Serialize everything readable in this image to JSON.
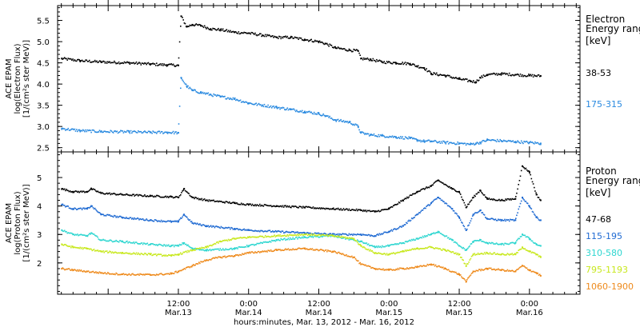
{
  "chart_data": [
    {
      "type": "scatter",
      "panel": "electron",
      "title": "",
      "ylabel_lines": [
        "ACE EPAM",
        "log(Electron Flux)",
        "[1/(cm²s ster MeV)]"
      ],
      "legend_title_lines": [
        "Electron",
        "Energy ranges",
        "[keV]"
      ],
      "ylim": [
        2.4,
        5.85
      ],
      "yticks": [
        2.5,
        3.0,
        3.5,
        4.0,
        4.5,
        5.0,
        5.5
      ],
      "ytick_labels": [
        "2.5",
        "3.0",
        "3.5",
        "4.0",
        "4.5",
        "5.0",
        "5.5"
      ],
      "series": [
        {
          "name": "38-53",
          "color": "#000000",
          "points": [
            [
              -0.33,
              4.6
            ],
            [
              -0.2,
              4.55
            ],
            [
              -0.05,
              4.52
            ],
            [
              0.15,
              4.5
            ],
            [
              0.3,
              4.47
            ],
            [
              0.42,
              4.45
            ],
            [
              0.5,
              4.44
            ],
            [
              0.52,
              5.6
            ],
            [
              0.56,
              5.35
            ],
            [
              0.6,
              5.4
            ],
            [
              0.66,
              5.38
            ],
            [
              0.73,
              5.3
            ],
            [
              0.8,
              5.28
            ],
            [
              0.9,
              5.22
            ],
            [
              1.0,
              5.2
            ],
            [
              1.1,
              5.15
            ],
            [
              1.2,
              5.1
            ],
            [
              1.3,
              5.1
            ],
            [
              1.4,
              5.05
            ],
            [
              1.5,
              5.0
            ],
            [
              1.55,
              4.95
            ],
            [
              1.62,
              4.85
            ],
            [
              1.72,
              4.8
            ],
            [
              1.78,
              4.78
            ],
            [
              1.8,
              4.6
            ],
            [
              1.87,
              4.58
            ],
            [
              1.95,
              4.52
            ],
            [
              2.05,
              4.5
            ],
            [
              2.15,
              4.48
            ],
            [
              2.2,
              4.42
            ],
            [
              2.25,
              4.38
            ],
            [
              2.3,
              4.25
            ],
            [
              2.4,
              4.2
            ],
            [
              2.5,
              4.12
            ],
            [
              2.58,
              4.07
            ],
            [
              2.62,
              4.05
            ],
            [
              2.65,
              4.15
            ],
            [
              2.7,
              4.22
            ],
            [
              2.8,
              4.24
            ],
            [
              2.9,
              4.22
            ],
            [
              3.0,
              4.2
            ],
            [
              3.08,
              4.19
            ]
          ]
        },
        {
          "name": "175-315",
          "color": "#2a8ae0",
          "points": [
            [
              -0.33,
              2.95
            ],
            [
              -0.2,
              2.9
            ],
            [
              -0.05,
              2.88
            ],
            [
              0.15,
              2.87
            ],
            [
              0.3,
              2.86
            ],
            [
              0.42,
              2.86
            ],
            [
              0.5,
              2.85
            ],
            [
              0.52,
              4.15
            ],
            [
              0.56,
              3.95
            ],
            [
              0.6,
              3.85
            ],
            [
              0.66,
              3.8
            ],
            [
              0.73,
              3.75
            ],
            [
              0.8,
              3.7
            ],
            [
              0.9,
              3.65
            ],
            [
              1.0,
              3.55
            ],
            [
              1.1,
              3.5
            ],
            [
              1.2,
              3.45
            ],
            [
              1.3,
              3.4
            ],
            [
              1.4,
              3.35
            ],
            [
              1.5,
              3.3
            ],
            [
              1.55,
              3.25
            ],
            [
              1.62,
              3.15
            ],
            [
              1.72,
              3.1
            ],
            [
              1.78,
              3.0
            ],
            [
              1.8,
              2.85
            ],
            [
              1.87,
              2.8
            ],
            [
              1.95,
              2.78
            ],
            [
              2.05,
              2.75
            ],
            [
              2.15,
              2.72
            ],
            [
              2.2,
              2.68
            ],
            [
              2.25,
              2.65
            ],
            [
              2.3,
              2.65
            ],
            [
              2.4,
              2.62
            ],
            [
              2.5,
              2.6
            ],
            [
              2.58,
              2.58
            ],
            [
              2.62,
              2.6
            ],
            [
              2.65,
              2.62
            ],
            [
              2.7,
              2.68
            ],
            [
              2.8,
              2.66
            ],
            [
              2.9,
              2.64
            ],
            [
              3.0,
              2.62
            ],
            [
              3.08,
              2.6
            ]
          ]
        }
      ]
    },
    {
      "type": "scatter",
      "panel": "proton",
      "title": "",
      "ylabel_lines": [
        "ACE EPAM",
        "log(Proton Flux)",
        "[1/(cm²s ster MeV)]"
      ],
      "legend_title_lines": [
        "Proton",
        "Energy ranges",
        "[keV]"
      ],
      "ylim": [
        0.9,
        5.9
      ],
      "yticks": [
        2,
        3,
        4,
        5
      ],
      "ytick_labels": [
        "2",
        "3",
        "4",
        "5"
      ],
      "series": [
        {
          "name": "47-68",
          "color": "#000000",
          "points": [
            [
              -0.33,
              4.6
            ],
            [
              -0.25,
              4.5
            ],
            [
              -0.15,
              4.5
            ],
            [
              -0.12,
              4.6
            ],
            [
              -0.05,
              4.45
            ],
            [
              0.1,
              4.4
            ],
            [
              0.3,
              4.35
            ],
            [
              0.45,
              4.32
            ],
            [
              0.5,
              4.3
            ],
            [
              0.54,
              4.6
            ],
            [
              0.6,
              4.3
            ],
            [
              0.7,
              4.2
            ],
            [
              0.9,
              4.1
            ],
            [
              1.0,
              4.05
            ],
            [
              1.2,
              4.0
            ],
            [
              1.4,
              3.95
            ],
            [
              1.6,
              3.9
            ],
            [
              1.8,
              3.85
            ],
            [
              1.9,
              3.8
            ],
            [
              2.0,
              3.9
            ],
            [
              2.1,
              4.2
            ],
            [
              2.2,
              4.5
            ],
            [
              2.3,
              4.7
            ],
            [
              2.35,
              4.9
            ],
            [
              2.45,
              4.6
            ],
            [
              2.5,
              4.5
            ],
            [
              2.55,
              3.95
            ],
            [
              2.6,
              4.3
            ],
            [
              2.65,
              4.55
            ],
            [
              2.7,
              4.25
            ],
            [
              2.8,
              4.2
            ],
            [
              2.9,
              4.25
            ],
            [
              2.95,
              5.4
            ],
            [
              3.0,
              5.2
            ],
            [
              3.05,
              4.4
            ],
            [
              3.08,
              4.2
            ]
          ]
        },
        {
          "name": "115-195",
          "color": "#1f6ad2",
          "points": [
            [
              -0.33,
              4.05
            ],
            [
              -0.25,
              3.9
            ],
            [
              -0.15,
              3.9
            ],
            [
              -0.12,
              4.0
            ],
            [
              -0.05,
              3.7
            ],
            [
              0.1,
              3.6
            ],
            [
              0.3,
              3.5
            ],
            [
              0.45,
              3.45
            ],
            [
              0.5,
              3.45
            ],
            [
              0.54,
              3.7
            ],
            [
              0.6,
              3.4
            ],
            [
              0.7,
              3.3
            ],
            [
              0.9,
              3.2
            ],
            [
              1.0,
              3.15
            ],
            [
              1.2,
              3.1
            ],
            [
              1.4,
              3.05
            ],
            [
              1.6,
              3.0
            ],
            [
              1.8,
              3.0
            ],
            [
              1.9,
              2.95
            ],
            [
              2.0,
              3.1
            ],
            [
              2.1,
              3.3
            ],
            [
              2.2,
              3.7
            ],
            [
              2.3,
              4.1
            ],
            [
              2.35,
              4.3
            ],
            [
              2.45,
              3.9
            ],
            [
              2.5,
              3.6
            ],
            [
              2.55,
              3.15
            ],
            [
              2.6,
              3.7
            ],
            [
              2.65,
              3.85
            ],
            [
              2.7,
              3.55
            ],
            [
              2.8,
              3.5
            ],
            [
              2.9,
              3.5
            ],
            [
              2.95,
              4.3
            ],
            [
              3.0,
              4.0
            ],
            [
              3.05,
              3.6
            ],
            [
              3.08,
              3.5
            ]
          ]
        },
        {
          "name": "310-580",
          "color": "#2ed6d0",
          "points": [
            [
              -0.33,
              3.15
            ],
            [
              -0.25,
              3.0
            ],
            [
              -0.15,
              2.95
            ],
            [
              -0.12,
              3.05
            ],
            [
              -0.05,
              2.8
            ],
            [
              0.1,
              2.75
            ],
            [
              0.3,
              2.65
            ],
            [
              0.45,
              2.6
            ],
            [
              0.5,
              2.6
            ],
            [
              0.54,
              2.7
            ],
            [
              0.6,
              2.5
            ],
            [
              0.7,
              2.45
            ],
            [
              0.9,
              2.5
            ],
            [
              1.0,
              2.6
            ],
            [
              1.2,
              2.8
            ],
            [
              1.4,
              2.9
            ],
            [
              1.6,
              2.95
            ],
            [
              1.8,
              2.75
            ],
            [
              1.9,
              2.55
            ],
            [
              2.0,
              2.6
            ],
            [
              2.1,
              2.7
            ],
            [
              2.2,
              2.85
            ],
            [
              2.3,
              3.0
            ],
            [
              2.35,
              3.1
            ],
            [
              2.45,
              2.8
            ],
            [
              2.5,
              2.6
            ],
            [
              2.55,
              2.45
            ],
            [
              2.6,
              2.75
            ],
            [
              2.65,
              2.8
            ],
            [
              2.7,
              2.7
            ],
            [
              2.8,
              2.65
            ],
            [
              2.9,
              2.7
            ],
            [
              2.95,
              3.0
            ],
            [
              3.0,
              2.85
            ],
            [
              3.05,
              2.65
            ],
            [
              3.08,
              2.6
            ]
          ]
        },
        {
          "name": "795-1193",
          "color": "#c8e81e",
          "points": [
            [
              -0.33,
              2.65
            ],
            [
              -0.25,
              2.55
            ],
            [
              -0.15,
              2.5
            ],
            [
              -0.05,
              2.4
            ],
            [
              0.1,
              2.35
            ],
            [
              0.3,
              2.3
            ],
            [
              0.45,
              2.25
            ],
            [
              0.5,
              2.3
            ],
            [
              0.6,
              2.45
            ],
            [
              0.7,
              2.55
            ],
            [
              0.8,
              2.75
            ],
            [
              0.9,
              2.85
            ],
            [
              1.0,
              2.9
            ],
            [
              1.2,
              2.95
            ],
            [
              1.4,
              3.0
            ],
            [
              1.6,
              2.95
            ],
            [
              1.75,
              2.85
            ],
            [
              1.8,
              2.6
            ],
            [
              1.9,
              2.35
            ],
            [
              2.0,
              2.3
            ],
            [
              2.1,
              2.4
            ],
            [
              2.2,
              2.5
            ],
            [
              2.3,
              2.55
            ],
            [
              2.4,
              2.45
            ],
            [
              2.5,
              2.3
            ],
            [
              2.55,
              1.9
            ],
            [
              2.6,
              2.3
            ],
            [
              2.7,
              2.35
            ],
            [
              2.8,
              2.3
            ],
            [
              2.9,
              2.3
            ],
            [
              2.95,
              2.55
            ],
            [
              3.0,
              2.4
            ],
            [
              3.05,
              2.3
            ],
            [
              3.08,
              2.2
            ]
          ]
        },
        {
          "name": "1060-1900",
          "color": "#ee8a1c",
          "points": [
            [
              -0.33,
              1.8
            ],
            [
              -0.25,
              1.75
            ],
            [
              -0.15,
              1.7
            ],
            [
              -0.05,
              1.65
            ],
            [
              0.1,
              1.6
            ],
            [
              0.3,
              1.58
            ],
            [
              0.45,
              1.62
            ],
            [
              0.5,
              1.7
            ],
            [
              0.6,
              1.9
            ],
            [
              0.7,
              2.1
            ],
            [
              0.8,
              2.2
            ],
            [
              0.9,
              2.25
            ],
            [
              1.0,
              2.35
            ],
            [
              1.2,
              2.45
            ],
            [
              1.4,
              2.5
            ],
            [
              1.6,
              2.4
            ],
            [
              1.75,
              2.2
            ],
            [
              1.8,
              1.95
            ],
            [
              1.9,
              1.8
            ],
            [
              2.0,
              1.75
            ],
            [
              2.1,
              1.8
            ],
            [
              2.2,
              1.85
            ],
            [
              2.3,
              1.95
            ],
            [
              2.4,
              1.8
            ],
            [
              2.5,
              1.6
            ],
            [
              2.55,
              1.35
            ],
            [
              2.6,
              1.7
            ],
            [
              2.7,
              1.8
            ],
            [
              2.8,
              1.75
            ],
            [
              2.9,
              1.7
            ],
            [
              2.95,
              1.9
            ],
            [
              3.0,
              1.75
            ],
            [
              3.05,
              1.65
            ],
            [
              3.08,
              1.55
            ]
          ]
        }
      ]
    }
  ],
  "x_axis": {
    "ticks": [
      {
        "v": 0.5,
        "line1": "12:00",
        "line2": "Mar.13"
      },
      {
        "v": 1.0,
        "line1": "0:00",
        "line2": "Mar.14"
      },
      {
        "v": 1.5,
        "line1": "12:00",
        "line2": "Mar.14"
      },
      {
        "v": 2.0,
        "line1": "0:00",
        "line2": "Mar.15"
      },
      {
        "v": 2.5,
        "line1": "12:00",
        "line2": "Mar.15"
      },
      {
        "v": 3.0,
        "line1": "0:00",
        "line2": "Mar.16"
      }
    ],
    "xlabel": "hours:minutes, Mar. 13, 2012 - Mar. 16, 2012"
  }
}
